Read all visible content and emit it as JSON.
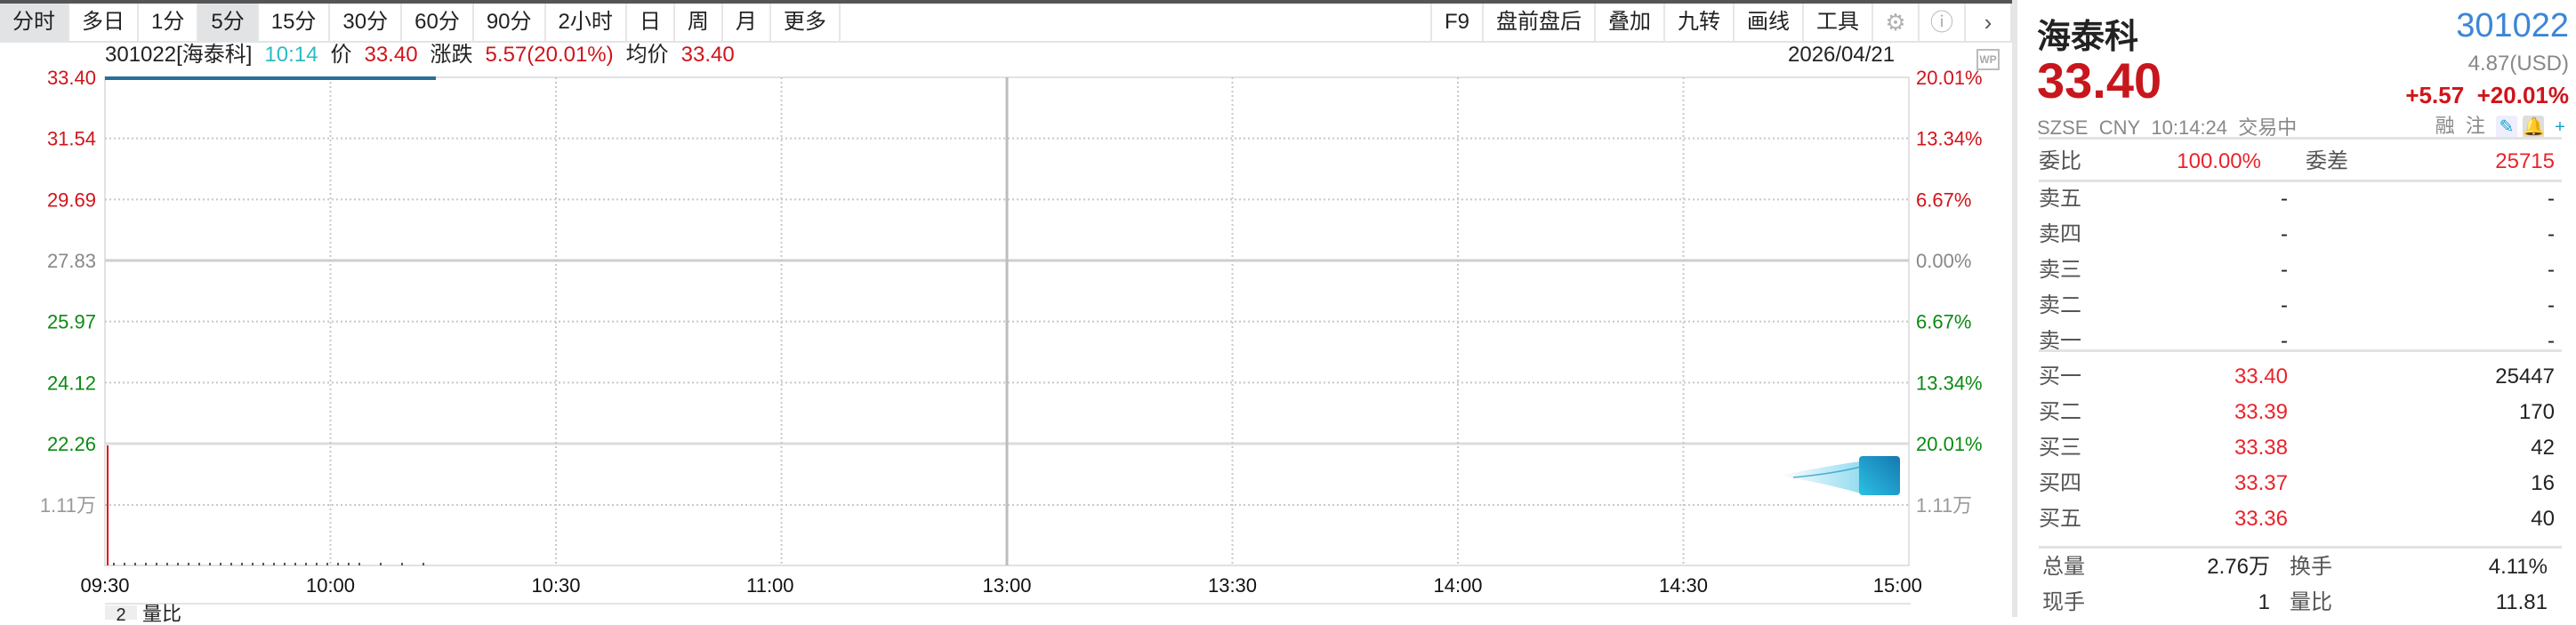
{
  "toolbar": {
    "periods": [
      "分时",
      "多日",
      "1分",
      "5分",
      "15分",
      "30分",
      "60分",
      "90分",
      "2小时",
      "日",
      "周",
      "月",
      "更多"
    ],
    "tools": [
      "F9",
      "盘前盘后",
      "叠加",
      "九转",
      "画线",
      "工具"
    ],
    "icons": [
      "gear-icon",
      "help-icon",
      "chevron-right-icon"
    ]
  },
  "header": {
    "symbol": "301022[海泰科]",
    "time": "10:14",
    "price_label": "价",
    "price": "33.40",
    "change_label": "涨跌",
    "change": "5.57(20.01%)",
    "avg_label": "均价",
    "avg": "33.40",
    "date": "2026/04/21",
    "wp_badge": "WP"
  },
  "chart": {
    "price_labels": [
      "33.40",
      "31.54",
      "29.69",
      "27.83",
      "25.97",
      "24.12",
      "22.26"
    ],
    "pct_labels": [
      "20.01%",
      "13.34%",
      "6.67%",
      "0.00%",
      "6.67%",
      "13.34%",
      "20.01%"
    ],
    "volume_label": "1.11万",
    "time_labels": [
      "09:30",
      "10:00",
      "10:30",
      "11:00",
      "13:00",
      "13:30",
      "14:00",
      "14:30",
      "15:00"
    ],
    "colors": {
      "up": "#d0141b",
      "down": "#0b8a12",
      "flat": "#888888",
      "price_line": "#2a6f97"
    }
  },
  "bottom": {
    "tab_number": "2",
    "label": "量比"
  },
  "quote": {
    "name": "海泰科",
    "code": "301022",
    "price": "33.40",
    "usd": "4.87(USD)",
    "change": "+5.57",
    "change_pct": "+20.01%",
    "exchange": "SZSE",
    "currency": "CNY",
    "time": "10:14:24",
    "status": "交易中",
    "margin": "融",
    "watch": "注",
    "commission_ratio_label": "委比",
    "commission_ratio": "100.00%",
    "commission_diff_label": "委差",
    "commission_diff": "25715",
    "asks": [
      {
        "label": "卖五",
        "price": "-",
        "vol": "-"
      },
      {
        "label": "卖四",
        "price": "-",
        "vol": "-"
      },
      {
        "label": "卖三",
        "price": "-",
        "vol": "-"
      },
      {
        "label": "卖二",
        "price": "-",
        "vol": "-"
      },
      {
        "label": "卖一",
        "price": "-",
        "vol": "-"
      }
    ],
    "bids": [
      {
        "label": "买一",
        "price": "33.40",
        "vol": "25447"
      },
      {
        "label": "买二",
        "price": "33.39",
        "vol": "170"
      },
      {
        "label": "买三",
        "price": "33.38",
        "vol": "42"
      },
      {
        "label": "买四",
        "price": "33.37",
        "vol": "16"
      },
      {
        "label": "买五",
        "price": "33.36",
        "vol": "40"
      }
    ],
    "total_vol_label": "总量",
    "total_vol": "2.76万",
    "turnover_label": "换手",
    "turnover": "4.11%",
    "cur_vol_label": "现手",
    "cur_vol": "1",
    "vol_ratio_label": "量比",
    "vol_ratio": "11.81"
  }
}
